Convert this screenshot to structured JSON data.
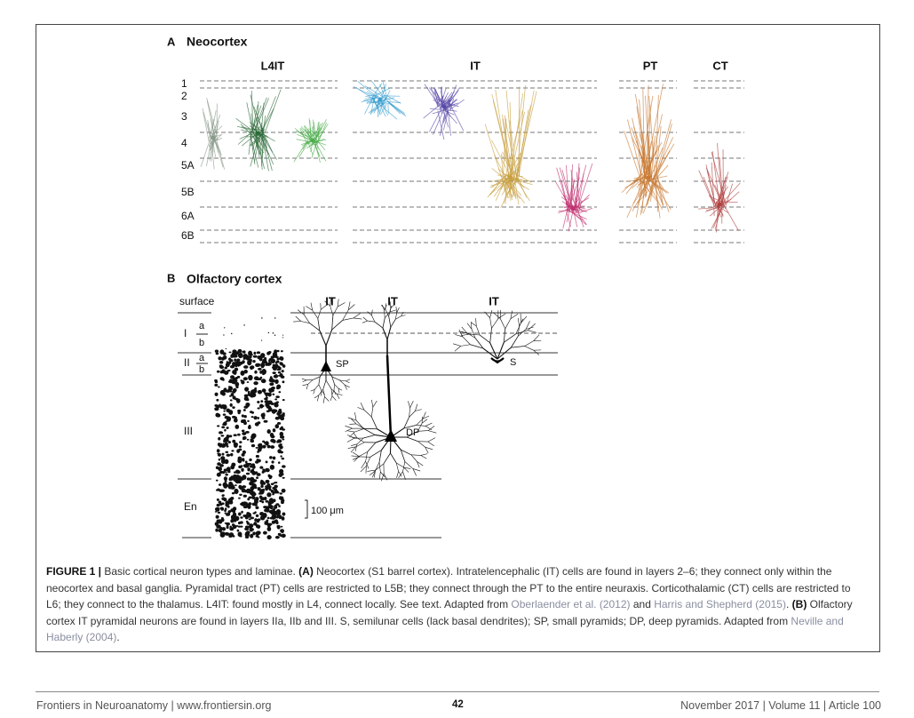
{
  "figure": {
    "panel_a": {
      "letter": "A",
      "title": "Neocortex",
      "columns": [
        "L4IT",
        "IT",
        "PT",
        "CT"
      ],
      "layers": [
        "1",
        "2",
        "3",
        "4",
        "5A",
        "5B",
        "6A",
        "6B"
      ]
    },
    "panel_b": {
      "letter": "B",
      "title": "Olfactory cortex",
      "surface_label": "surface",
      "layers": [
        {
          "label": "I",
          "sublayers": [
            "a",
            "b"
          ]
        },
        {
          "label": "II",
          "sublayers": [
            "a",
            "b"
          ]
        },
        {
          "label": "III"
        },
        {
          "label": "En"
        }
      ],
      "columns": [
        "IT",
        "IT",
        "IT"
      ],
      "cell_labels": [
        "SP",
        "DP",
        "S"
      ],
      "scale_bar": "100 μm"
    },
    "caption": [
      {
        "text": "FIGURE 1 | ",
        "style": "bold"
      },
      {
        "text": "Basic cortical neuron types and laminae. "
      },
      {
        "text": "(A)",
        "style": "bold"
      },
      {
        "text": " Neocortex (S1 barrel cortex). Intratelencephalic (IT) cells are found in layers 2–6; they connect only within the neocortex and basal ganglia. Pyramidal tract (PT) cells are restricted to L5B; they connect through the PT to the entire neuraxis. Corticothalamic (CT) cells are restricted to L6; they connect to the thalamus. L4IT: found mostly in L4, connect locally. See text. Adapted from "
      },
      {
        "text": "Oberlaender et al. (2012)",
        "style": "link"
      },
      {
        "text": " and "
      },
      {
        "text": "Harris and Shepherd (2015)",
        "style": "link"
      },
      {
        "text": ". "
      },
      {
        "text": "(B)",
        "style": "bold"
      },
      {
        "text": " Olfactory cortex IT pyramidal neurons are found in layers IIa, IIb and III. S, semilunar cells (lack basal dendrites); SP, small pyramids; DP, deep pyramids. Adapted from "
      },
      {
        "text": "Neville and Haberly (2004)",
        "style": "link"
      },
      {
        "text": "."
      }
    ]
  },
  "footer": {
    "journal": "Frontiers in Neuroanatomy | www.frontiersin.org",
    "page": "42",
    "issue": "November 2017 | Volume 11 | Article 100"
  }
}
